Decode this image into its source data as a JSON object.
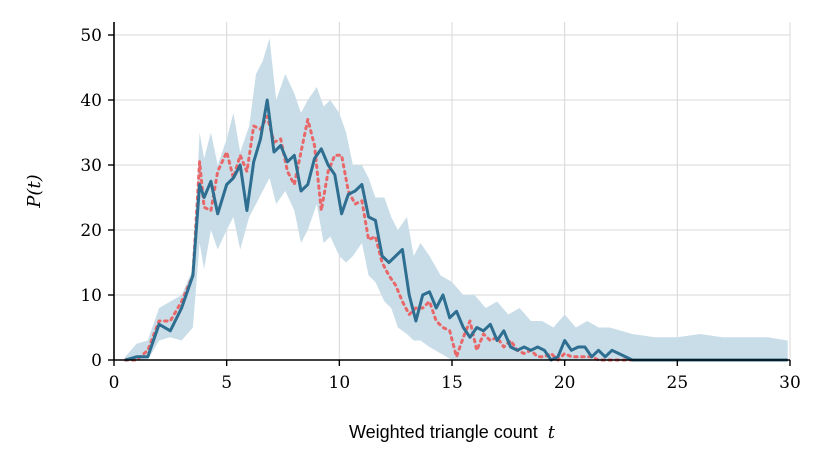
{
  "chart_data": {
    "type": "line",
    "xlabel": "Weighted triangle count t",
    "xlabel_text": "Weighted triangle count",
    "xlabel_var": "t",
    "ylabel": "P(t)",
    "xlim": [
      0,
      30
    ],
    "ylim": [
      0,
      52
    ],
    "grid": true,
    "x_ticks": [
      0,
      5,
      10,
      15,
      20,
      25,
      30
    ],
    "y_ticks": [
      0,
      10,
      20,
      30,
      40,
      50
    ],
    "colors": {
      "solid": "#2e6e90",
      "dotted": "#e8686a",
      "band": "#c9dde8"
    },
    "band": {
      "x": [
        0.5,
        1.0,
        1.5,
        2.0,
        2.5,
        3.0,
        3.5,
        3.8,
        4.0,
        4.3,
        4.6,
        5.0,
        5.3,
        5.6,
        6.0,
        6.3,
        6.6,
        6.9,
        7.2,
        7.6,
        8.0,
        8.3,
        8.6,
        9.0,
        9.3,
        9.6,
        10.0,
        10.3,
        10.6,
        11.0,
        11.3,
        11.6,
        12.0,
        12.3,
        12.6,
        13.0,
        13.3,
        13.6,
        14.0,
        14.5,
        15.0,
        15.5,
        16.0,
        16.5,
        17.0,
        17.5,
        18.0,
        18.5,
        19.0,
        19.5,
        20.0,
        20.5,
        21.0,
        21.5,
        22.0,
        23.0,
        24.0,
        25.0,
        26.0,
        27.0,
        28.0,
        29.0,
        29.9
      ],
      "upper": [
        0.5,
        2.5,
        3.0,
        8.0,
        9.0,
        10.0,
        14.0,
        35.0,
        31.0,
        35.0,
        30.0,
        34.0,
        38.0,
        32.0,
        36.0,
        44.0,
        46.0,
        49.5,
        40.0,
        44.0,
        41.0,
        38.0,
        40.0,
        42.0,
        39.0,
        40.0,
        38.0,
        35.0,
        30.0,
        30.0,
        28.0,
        25.0,
        25.0,
        22.0,
        20.0,
        22.0,
        16.0,
        18.0,
        16.0,
        13.0,
        12.0,
        10.0,
        10.0,
        8.0,
        9.0,
        7.0,
        8.0,
        6.0,
        6.0,
        5.0,
        7.0,
        5.0,
        6.0,
        5.0,
        5.0,
        4.0,
        3.5,
        3.5,
        4.0,
        3.5,
        3.5,
        3.5,
        3.0
      ],
      "lower": [
        0,
        0,
        0,
        3.0,
        3.5,
        3.0,
        5.0,
        18.0,
        14.0,
        20.0,
        17.0,
        20.0,
        22.0,
        17.0,
        22.0,
        24.0,
        26.0,
        28.0,
        24.0,
        26.0,
        23.0,
        18.0,
        20.0,
        24.0,
        18.0,
        19.0,
        16.0,
        15.0,
        16.0,
        18.0,
        13.0,
        12.0,
        9.0,
        8.0,
        5.0,
        4.0,
        3.0,
        3.0,
        2.0,
        1.0,
        0,
        0,
        0,
        0,
        0,
        0,
        0,
        0,
        0,
        0,
        0,
        0,
        0,
        0,
        0,
        0,
        0,
        0,
        0,
        0,
        0,
        0,
        0
      ]
    },
    "series": [
      {
        "style": "solid",
        "x": [
          0.5,
          1.0,
          1.5,
          2.0,
          2.5,
          3.0,
          3.5,
          3.8,
          4.0,
          4.3,
          4.6,
          5.0,
          5.3,
          5.6,
          5.9,
          6.2,
          6.5,
          6.8,
          7.1,
          7.4,
          7.7,
          8.0,
          8.3,
          8.6,
          8.9,
          9.2,
          9.5,
          9.8,
          10.1,
          10.4,
          10.7,
          11.0,
          11.3,
          11.6,
          11.9,
          12.2,
          12.5,
          12.8,
          13.1,
          13.4,
          13.7,
          14.0,
          14.3,
          14.6,
          14.9,
          15.2,
          15.5,
          15.8,
          16.1,
          16.4,
          16.7,
          17.0,
          17.3,
          17.6,
          17.9,
          18.2,
          18.5,
          18.8,
          19.1,
          19.4,
          19.7,
          20.0,
          20.3,
          20.6,
          20.9,
          21.2,
          21.5,
          21.8,
          22.1,
          22.4,
          23.0,
          25.0,
          27.0,
          29.9
        ],
        "y": [
          0,
          0.5,
          0.5,
          5.5,
          4.5,
          8.0,
          13.0,
          27.0,
          25.0,
          27.5,
          22.5,
          27.0,
          28.0,
          30.0,
          23.0,
          30.5,
          34.0,
          40.0,
          32.0,
          33.0,
          30.5,
          31.5,
          26.0,
          27.0,
          31.0,
          32.5,
          30.0,
          28.5,
          22.5,
          25.5,
          26.0,
          27.0,
          22.0,
          21.5,
          16.0,
          15.0,
          16.0,
          17.0,
          10.0,
          6.0,
          10.0,
          10.5,
          8.0,
          10.0,
          6.5,
          7.5,
          5.0,
          3.5,
          5.0,
          4.5,
          5.5,
          3.0,
          4.5,
          2.0,
          1.5,
          2.0,
          1.5,
          2.0,
          1.5,
          0,
          0.5,
          3.0,
          1.5,
          2.0,
          2.0,
          0.5,
          1.5,
          0.5,
          1.5,
          1.0,
          0,
          0,
          0,
          0
        ]
      },
      {
        "style": "dotted",
        "x": [
          0.5,
          1.0,
          1.5,
          2.0,
          2.5,
          3.0,
          3.5,
          3.8,
          4.0,
          4.3,
          4.6,
          5.0,
          5.3,
          5.6,
          5.9,
          6.2,
          6.5,
          6.8,
          7.1,
          7.4,
          7.7,
          8.0,
          8.3,
          8.6,
          8.9,
          9.2,
          9.5,
          9.8,
          10.1,
          10.4,
          10.7,
          11.0,
          11.3,
          11.6,
          11.9,
          12.2,
          12.5,
          12.8,
          13.1,
          13.4,
          13.7,
          14.0,
          14.3,
          14.6,
          14.9,
          15.2,
          15.5,
          15.8,
          16.1,
          16.4,
          16.7,
          17.0,
          17.3,
          17.6,
          17.9,
          18.2,
          18.5,
          18.8,
          19.1,
          19.4,
          19.7,
          20.0,
          20.3,
          20.6,
          20.9,
          21.2,
          21.5,
          21.8,
          22.1,
          22.4,
          23.0,
          25.0,
          27.0,
          29.9
        ],
        "y": [
          0,
          0,
          1.5,
          6.0,
          6.0,
          9.0,
          13.0,
          30.5,
          23.5,
          23.0,
          29.0,
          32.0,
          28.0,
          31.5,
          29.0,
          36.0,
          35.5,
          37.5,
          33.5,
          34.0,
          29.0,
          27.0,
          32.0,
          37.0,
          33.0,
          23.0,
          29.0,
          31.5,
          31.5,
          26.0,
          24.0,
          24.5,
          18.5,
          19.0,
          15.0,
          13.0,
          11.5,
          9.0,
          7.0,
          8.0,
          8.0,
          9.0,
          6.0,
          5.0,
          4.5,
          0.5,
          3.5,
          6.0,
          1.5,
          4.0,
          3.0,
          3.5,
          2.0,
          3.0,
          1.5,
          1.0,
          1.5,
          0.5,
          0.5,
          1.0,
          0,
          1.0,
          0.5,
          0.5,
          0.5,
          0.5,
          0,
          0,
          0,
          0,
          0,
          0,
          0,
          0
        ]
      }
    ]
  }
}
